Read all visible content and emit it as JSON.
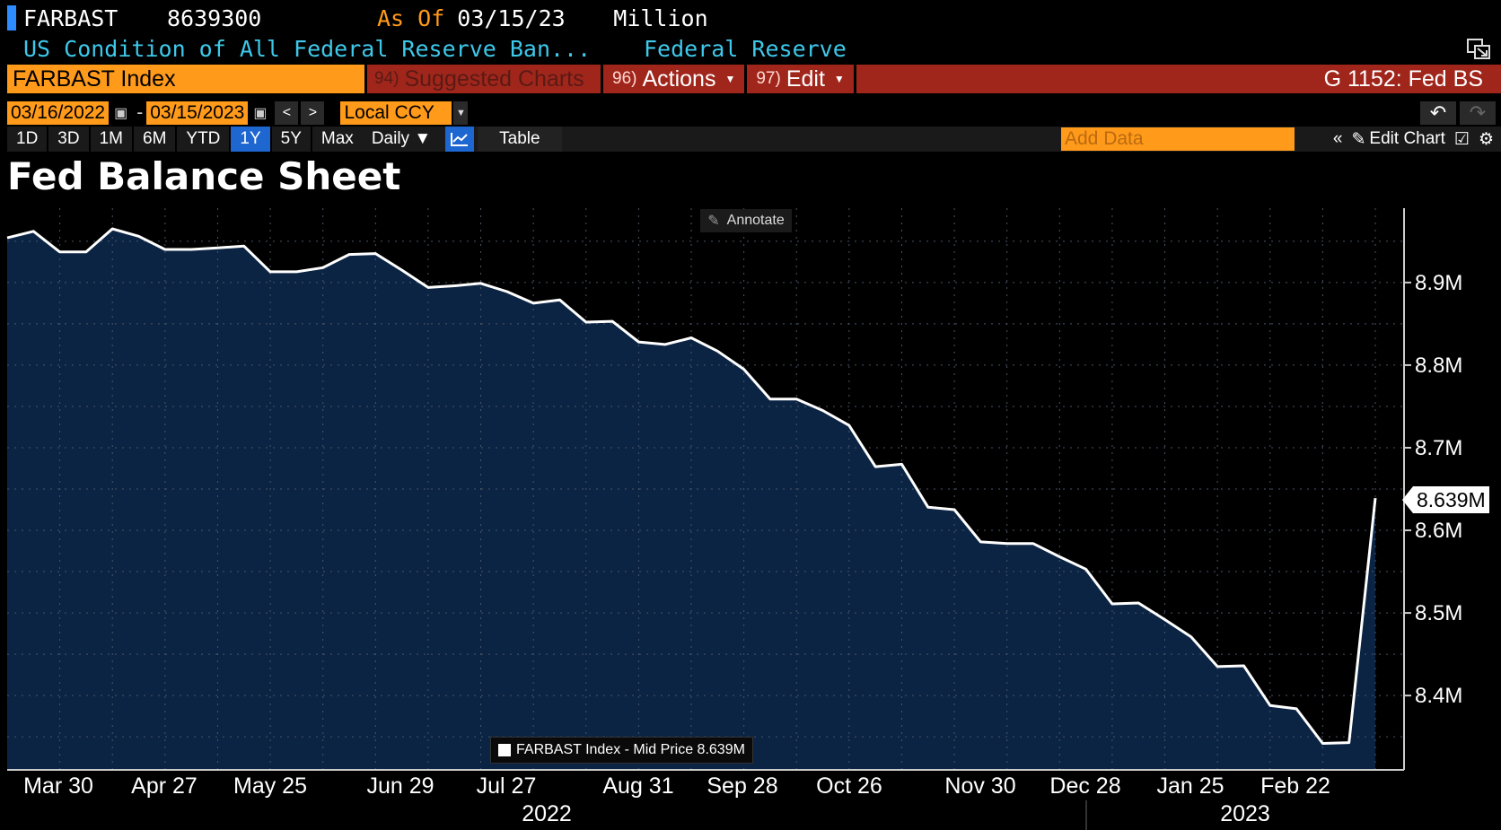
{
  "header": {
    "ticker": "FARBAST",
    "last_value": "8639300",
    "as_of_label": "As Of",
    "as_of_date": "03/15/23",
    "units": "Million",
    "description": "US Condition of All Federal Reserve Ban...",
    "source": "Federal Reserve"
  },
  "command_bar": {
    "security": "FARBAST Index",
    "suggested_num": "94)",
    "suggested_label": "Suggested Charts",
    "actions_num": "96)",
    "actions_label": "Actions",
    "edit_num": "97)",
    "edit_label": "Edit",
    "page_id": "G 1152: Fed BS"
  },
  "date_range": {
    "start": "03/16/2022",
    "separator": "-",
    "end": "03/15/2023",
    "currency": "Local CCY",
    "prev": "<",
    "next": ">"
  },
  "toolbar": {
    "periods": [
      "1D",
      "3D",
      "1M",
      "6M",
      "YTD",
      "1Y",
      "5Y",
      "Max"
    ],
    "active_period": "1Y",
    "frequency": "Daily ▼",
    "table_label": "Table",
    "add_data_placeholder": "Add Data",
    "edit_chart_label": "Edit Chart"
  },
  "annotate_label": "Annotate",
  "colors": {
    "orange": "#ff9a1a",
    "red_bar": "#a0261c",
    "cyan": "#3ec8ea",
    "area_fill": "#0b2444",
    "line": "#ffffff",
    "active_blue": "#1e66d0"
  },
  "chart_data": {
    "type": "area",
    "title": "Fed Balance Sheet",
    "series": [
      {
        "name": "FARBAST Index - Mid Price",
        "legend": "FARBAST Index - Mid Price 8.639M",
        "values": [
          8.954,
          8.962,
          8.937,
          8.937,
          8.965,
          8.956,
          8.94,
          8.94,
          8.942,
          8.944,
          8.913,
          8.913,
          8.918,
          8.934,
          8.935,
          8.915,
          8.894,
          8.896,
          8.899,
          8.889,
          8.875,
          8.879,
          8.852,
          8.853,
          8.828,
          8.825,
          8.833,
          8.817,
          8.795,
          8.759,
          8.759,
          8.745,
          8.727,
          8.677,
          8.68,
          8.628,
          8.625,
          8.586,
          8.584,
          8.584,
          8.568,
          8.553,
          8.511,
          8.512,
          8.492,
          8.471,
          8.435,
          8.436,
          8.388,
          8.384,
          8.342,
          8.343,
          8.639
        ]
      }
    ],
    "last_value_label": "8.639M",
    "x_tick_labels": [
      "Mar 30",
      "Apr 27",
      "May 25",
      "Jun 29",
      "Jul 27",
      "Aug 31",
      "Sep 28",
      "Oct 26",
      "Nov 30",
      "Dec 28",
      "Jan 25",
      "Feb 22"
    ],
    "x_year_labels": [
      "2022",
      "2023"
    ],
    "y_ticks": [
      8.4,
      8.5,
      8.6,
      8.7,
      8.8,
      8.9
    ],
    "y_tick_labels": [
      "8.4M",
      "8.5M",
      "8.6M",
      "8.7M",
      "8.8M",
      "8.9M"
    ],
    "ylim": [
      8.31,
      8.99
    ],
    "grid": true
  }
}
